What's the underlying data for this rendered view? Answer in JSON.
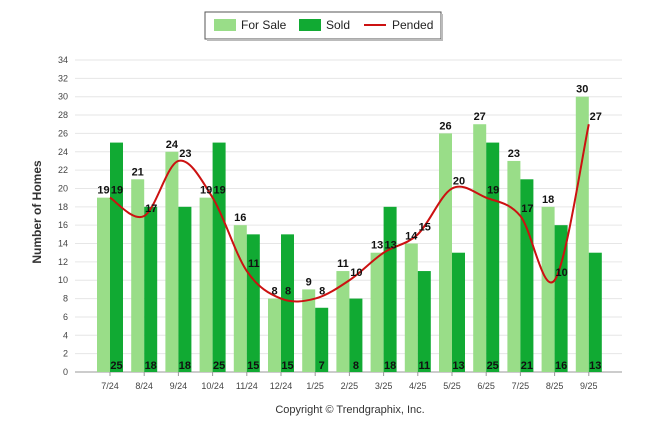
{
  "chart_data": {
    "type": "bar",
    "categories": [
      "7/24",
      "8/24",
      "9/24",
      "10/24",
      "11/24",
      "12/24",
      "1/25",
      "2/25",
      "3/25",
      "4/25",
      "5/25",
      "6/25",
      "7/25",
      "8/25",
      "9/25"
    ],
    "series": [
      {
        "name": "For Sale",
        "type": "bar",
        "color": "#99dd88",
        "values": [
          19,
          21,
          24,
          19,
          16,
          8,
          9,
          11,
          13,
          14,
          26,
          27,
          23,
          18,
          30
        ]
      },
      {
        "name": "Sold",
        "type": "bar",
        "color": "#11aa33",
        "values": [
          25,
          18,
          18,
          25,
          15,
          15,
          7,
          8,
          18,
          11,
          13,
          25,
          21,
          16,
          13
        ]
      },
      {
        "name": "Pended",
        "type": "line",
        "color": "#cc1111",
        "values": [
          19,
          17,
          23,
          19,
          11,
          8,
          8,
          10,
          13,
          15,
          20,
          19,
          17,
          10,
          27
        ]
      }
    ],
    "title": "",
    "xlabel": "",
    "ylabel": "Number of Homes",
    "ylim": [
      0,
      34
    ],
    "yticks": [
      0,
      2,
      4,
      6,
      8,
      10,
      12,
      14,
      16,
      18,
      20,
      22,
      24,
      26,
      28,
      30,
      32,
      34
    ],
    "grid": true,
    "legend": "top-center"
  },
  "footer": {
    "copyright": "Copyright © Trendgraphix, Inc."
  }
}
